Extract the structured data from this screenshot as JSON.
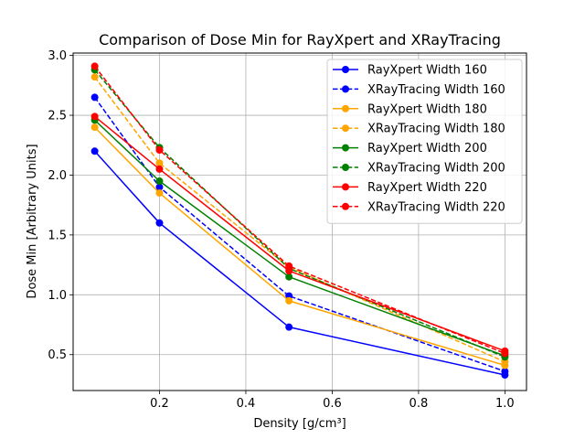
{
  "chart_data": {
    "type": "line",
    "title": "Comparison of Dose Min for RayXpert and XRayTracing",
    "xlabel": "Density [g/cm³]",
    "ylabel": "Dose Min [Arbitrary Units]",
    "xlim": [
      0.0,
      1.05
    ],
    "ylim": [
      0.2,
      3.02
    ],
    "xticks": [
      0.2,
      0.4,
      0.6,
      0.8,
      1.0
    ],
    "xtick_labels": [
      "0.2",
      "0.4",
      "0.6",
      "0.8",
      "1.0"
    ],
    "yticks": [
      0.5,
      1.0,
      1.5,
      2.0,
      2.5,
      3.0
    ],
    "ytick_labels": [
      "0.5",
      "1.0",
      "1.5",
      "2.0",
      "2.5",
      "3.0"
    ],
    "grid": true,
    "legend_position": "upper right",
    "x": [
      0.05,
      0.2,
      0.5,
      1.0
    ],
    "series": [
      {
        "name": "RayXpert Width 160",
        "color": "#0000ff",
        "style": "solid",
        "values": [
          2.2,
          1.6,
          0.73,
          0.33
        ]
      },
      {
        "name": "XRayTracing Width 160",
        "color": "#0000ff",
        "style": "dashed",
        "values": [
          2.65,
          1.9,
          0.99,
          0.36
        ]
      },
      {
        "name": "RayXpert Width 180",
        "color": "#ffa500",
        "style": "solid",
        "values": [
          2.4,
          1.85,
          0.95,
          0.41
        ]
      },
      {
        "name": "XRayTracing Width 180",
        "color": "#ffa500",
        "style": "dashed",
        "values": [
          2.82,
          2.1,
          1.23,
          0.44
        ]
      },
      {
        "name": "RayXpert Width 200",
        "color": "#008000",
        "style": "solid",
        "values": [
          2.46,
          1.95,
          1.15,
          0.49
        ]
      },
      {
        "name": "XRayTracing Width 200",
        "color": "#008000",
        "style": "dashed",
        "values": [
          2.88,
          2.23,
          1.22,
          0.48
        ]
      },
      {
        "name": "RayXpert Width 220",
        "color": "#ff0000",
        "style": "solid",
        "values": [
          2.49,
          2.05,
          1.2,
          0.53
        ]
      },
      {
        "name": "XRayTracing Width 220",
        "color": "#ff0000",
        "style": "dashed",
        "values": [
          2.91,
          2.21,
          1.24,
          0.51
        ]
      }
    ]
  }
}
